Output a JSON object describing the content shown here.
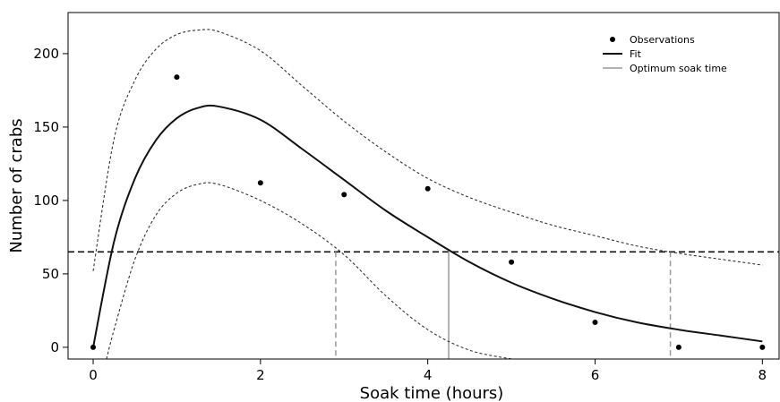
{
  "chart_data": {
    "type": "scatter",
    "xlabel": "Soak time (hours)",
    "ylabel": "Number of crabs",
    "xlim": [
      -0.3,
      8.2
    ],
    "ylim": [
      -8,
      228
    ],
    "x_ticks": [
      "0",
      "2",
      "4",
      "6",
      "8"
    ],
    "y_ticks": [
      "0",
      "50",
      "100",
      "150",
      "200"
    ],
    "grid": false,
    "legend_position": "top-right",
    "legend": [
      "Observations",
      "Fit",
      "Optimum soak time"
    ],
    "series": [
      {
        "name": "Observations",
        "kind": "points",
        "x": [
          0,
          1,
          2,
          3,
          4,
          5,
          6,
          7,
          8
        ],
        "y": [
          0,
          184,
          112,
          104,
          108,
          58,
          17,
          0,
          0
        ]
      },
      {
        "name": "Fit",
        "kind": "line",
        "x": [
          0,
          0.25,
          0.5,
          0.75,
          1.0,
          1.25,
          1.5,
          2.0,
          2.5,
          3.0,
          3.5,
          4.0,
          4.5,
          5.0,
          5.5,
          6.0,
          6.5,
          7.0,
          7.5,
          8.0
        ],
        "y": [
          0,
          72,
          115,
          141,
          156,
          163,
          164,
          155,
          135,
          114,
          93,
          75,
          58,
          44,
          33,
          24,
          17,
          12,
          8,
          4
        ]
      },
      {
        "kind": "upper-bound",
        "x": [
          0,
          0.25,
          0.5,
          0.75,
          1.0,
          1.25,
          1.5,
          2.0,
          2.5,
          3.0,
          3.5,
          4.0,
          4.5,
          5.0,
          5.5,
          6.0,
          6.5,
          7.0,
          7.5,
          8.0
        ],
        "y": [
          52,
          142,
          182,
          203,
          213,
          216,
          215,
          202,
          178,
          154,
          133,
          115,
          102,
          92,
          83,
          76,
          69,
          64,
          60,
          56
        ]
      },
      {
        "kind": "lower-bound",
        "x": [
          0.16,
          0.25,
          0.5,
          0.75,
          1.0,
          1.25,
          1.5,
          2.0,
          2.5,
          3.0,
          3.5,
          4.0,
          4.5,
          5.0
        ],
        "y": [
          -8,
          12,
          60,
          90,
          105,
          111,
          111,
          100,
          84,
          63,
          35,
          12,
          -2,
          -8
        ]
      }
    ],
    "reference_line_y": 65,
    "soak_time_markers": [
      {
        "x": 2.9,
        "style": "dashed"
      },
      {
        "x": 4.25,
        "style": "solid"
      },
      {
        "x": 6.9,
        "style": "dashed"
      }
    ],
    "colors": {
      "axis": "#000000",
      "fit": "#111111",
      "bounds": "#333333",
      "reference": "#111111",
      "marker": "#999999",
      "points": "#000000"
    }
  }
}
